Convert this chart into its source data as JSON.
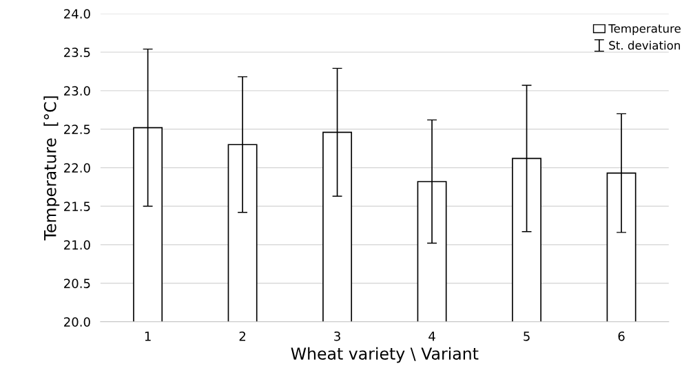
{
  "chart_data": {
    "type": "bar",
    "xlabel": "Wheat variety \\ Variant",
    "ylabel": "Temperature  [°C]",
    "categories": [
      "1",
      "2",
      "3",
      "4",
      "5",
      "6"
    ],
    "series": [
      {
        "name": "Temperature",
        "color": "#ffffff",
        "values": [
          22.52,
          22.3,
          22.46,
          21.82,
          22.12,
          21.93
        ],
        "errors": [
          1.02,
          0.88,
          0.83,
          0.8,
          0.95,
          0.77
        ]
      }
    ],
    "annotations": [
      "St. deviation"
    ],
    "ylim": [
      20.0,
      24.0
    ],
    "yticks": [
      {
        "value": 20.0,
        "label": "20.0"
      },
      {
        "value": 20.5,
        "label": "20.5"
      },
      {
        "value": 21.0,
        "label": "21.0"
      },
      {
        "value": 21.5,
        "label": "21.5"
      },
      {
        "value": 22.0,
        "label": "22.0"
      },
      {
        "value": 22.5,
        "label": "22.5"
      },
      {
        "value": 23.0,
        "label": "23.0"
      },
      {
        "value": 23.5,
        "label": "23.5"
      },
      {
        "value": 24.0,
        "label": "24.0"
      }
    ],
    "grid": "y",
    "legend": "top right"
  }
}
